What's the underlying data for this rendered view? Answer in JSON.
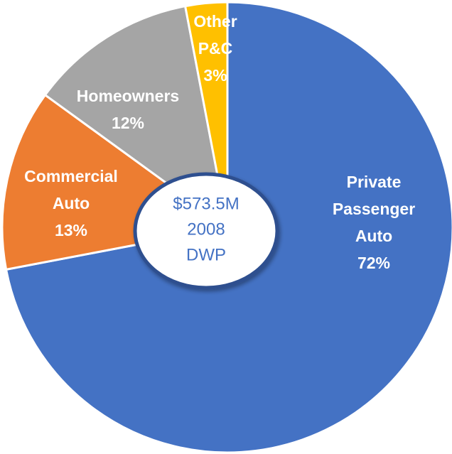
{
  "chart_data": {
    "type": "donut",
    "categories": [
      "Private Passenger Auto",
      "Commercial Auto",
      "Homeowners",
      "Other P&C"
    ],
    "values": [
      72,
      13,
      12,
      3
    ],
    "value_labels": [
      "72%",
      "13%",
      "12%",
      "3%"
    ],
    "colors": [
      "#4472c4",
      "#ed7d31",
      "#a5a5a5",
      "#ffc000"
    ],
    "center_text": [
      "$573.5M",
      "2008",
      "DWP"
    ]
  }
}
